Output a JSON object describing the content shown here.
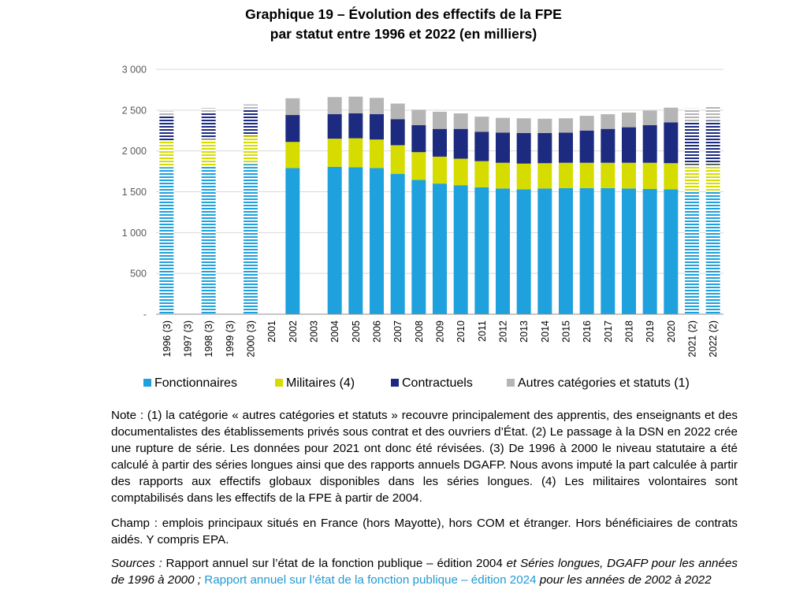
{
  "title": {
    "line1": "Graphique 19 – Évolution des effectifs de la FPE",
    "line2": "par statut entre 1996 et 2022 (en milliers)"
  },
  "colors": {
    "fonctionnaires": "#1ea1dc",
    "militaires": "#d6dc00",
    "contractuels": "#1c2a80",
    "autres": "#b5b5b5",
    "grid": "#d9d9d9",
    "axis": "#8c8c8c",
    "link": "#1f9ad6"
  },
  "chart_data": {
    "type": "bar",
    "stacked": true,
    "ylim": [
      0,
      3000
    ],
    "yticks": [
      "-",
      "500",
      "1 000",
      "1 500",
      "2 000",
      "2 500",
      "3 000"
    ],
    "grid": true,
    "legend_position": "bottom",
    "categories": [
      "1996 (3)",
      "1997 (3)",
      "1998 (3)",
      "1999 (3)",
      "2000 (3)",
      "2001",
      "2002",
      "2003",
      "2004",
      "2005",
      "2006",
      "2007",
      "2008",
      "2009",
      "2010",
      "2011",
      "2012",
      "2013",
      "2014",
      "2015",
      "2016",
      "2017",
      "2018",
      "2019",
      "2020",
      "2021 (2)",
      "2022 (2)"
    ],
    "hatched_categories": [
      "1996 (3)",
      "1998 (3)",
      "2000 (3)",
      "2021 (2)",
      "2022 (2)"
    ],
    "series": [
      {
        "name": "Fonctionnaires",
        "color_key": "fonctionnaires",
        "values": [
          1800,
          null,
          1815,
          null,
          1840,
          null,
          1790,
          null,
          1805,
          1800,
          1790,
          1720,
          1645,
          1600,
          1580,
          1555,
          1540,
          1530,
          1540,
          1545,
          1545,
          1545,
          1540,
          1535,
          1530,
          1500,
          1500
        ]
      },
      {
        "name": "Militaires (4)",
        "color_key": "militaires",
        "values": [
          315,
          null,
          330,
          null,
          345,
          null,
          320,
          null,
          345,
          355,
          350,
          350,
          340,
          330,
          325,
          320,
          315,
          315,
          310,
          310,
          310,
          310,
          315,
          320,
          320,
          330,
          330
        ]
      },
      {
        "name": "Contractuels",
        "color_key": "contractuels",
        "values": [
          310,
          null,
          320,
          null,
          325,
          null,
          330,
          null,
          300,
          305,
          310,
          320,
          330,
          340,
          365,
          360,
          370,
          375,
          370,
          370,
          395,
          415,
          435,
          460,
          500,
          520,
          540
        ]
      },
      {
        "name": "Autres catégories et statuts (1)",
        "color_key": "autres",
        "values": [
          60,
          null,
          60,
          null,
          60,
          null,
          205,
          null,
          210,
          205,
          200,
          190,
          190,
          210,
          190,
          185,
          180,
          180,
          175,
          175,
          180,
          180,
          180,
          180,
          180,
          170,
          170
        ]
      }
    ]
  },
  "legend": {
    "fonctionnaires": "Fonctionnaires",
    "militaires": "Militaires (4)",
    "contractuels": "Contractuels",
    "autres": "Autres catégories et statuts (1)"
  },
  "note_text": "Note : (1) la catégorie « autres catégories et statuts » recouvre principalement des apprentis, des enseignants et des documentalistes des établissements privés sous contrat et des ouvriers d’État. (2) Le passage à la DSN en 2022 crée une rupture de série. Les données pour 2021 ont donc été révisées. (3) De 1996 à 2000 le niveau statutaire a été calculé à partir des séries longues ainsi que des rapports annuels DGAFP. Nous avons imputé la part calculée à partir des rapports aux effectifs globaux disponibles dans les séries longues. (4) Les militaires volontaires sont comptabilisés dans les effectifs de la FPE à partir de 2004.",
  "champ_text": "Champ : emplois principaux situés en France (hors Mayotte), hors COM et étranger. Hors bénéficiaires de contrats aidés. Y compris EPA.",
  "sources": {
    "label": "Sources :",
    "part1": " Rapport annuel sur l’état de la fonction publique – édition 2004 ",
    "part2": "et Séries longues, DGAFP pour les années de 1996 à 2000 ; ",
    "link": "Rapport annuel sur l’état de la fonction publique – édition 2024",
    "part3": " pour les années de 2002 à 2022"
  }
}
